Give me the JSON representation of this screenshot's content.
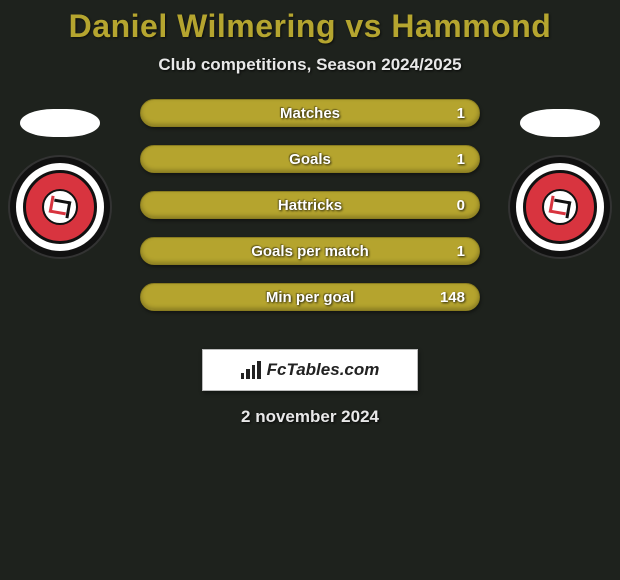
{
  "header": {
    "title": "Daniel Wilmering vs Hammond",
    "subtitle": "Club competitions, Season 2024/2025"
  },
  "colors": {
    "background": "#1e221d",
    "accent": "#b5a52f",
    "row_fill": "#b5a42e",
    "row_border": "#8a7d20",
    "badge_red": "#d8343f",
    "text_white": "#ffffff"
  },
  "typography": {
    "title_fontsize": 32,
    "title_weight": 900,
    "subtitle_fontsize": 17,
    "stat_fontsize": 15,
    "date_fontsize": 17
  },
  "stats": [
    {
      "label": "Matches",
      "value": "1"
    },
    {
      "label": "Goals",
      "value": "1"
    },
    {
      "label": "Hattricks",
      "value": "0"
    },
    {
      "label": "Goals per match",
      "value": "1"
    },
    {
      "label": "Min per goal",
      "value": "148"
    }
  ],
  "stat_row": {
    "height": 28,
    "border_radius": 14,
    "gap": 18
  },
  "branding": {
    "text": "FcTables.com",
    "icon": "bar-chart-icon"
  },
  "footer": {
    "date": "2 november 2024"
  },
  "players": {
    "left": {
      "club_icon": "club-badge-icon"
    },
    "right": {
      "club_icon": "club-badge-icon"
    }
  }
}
